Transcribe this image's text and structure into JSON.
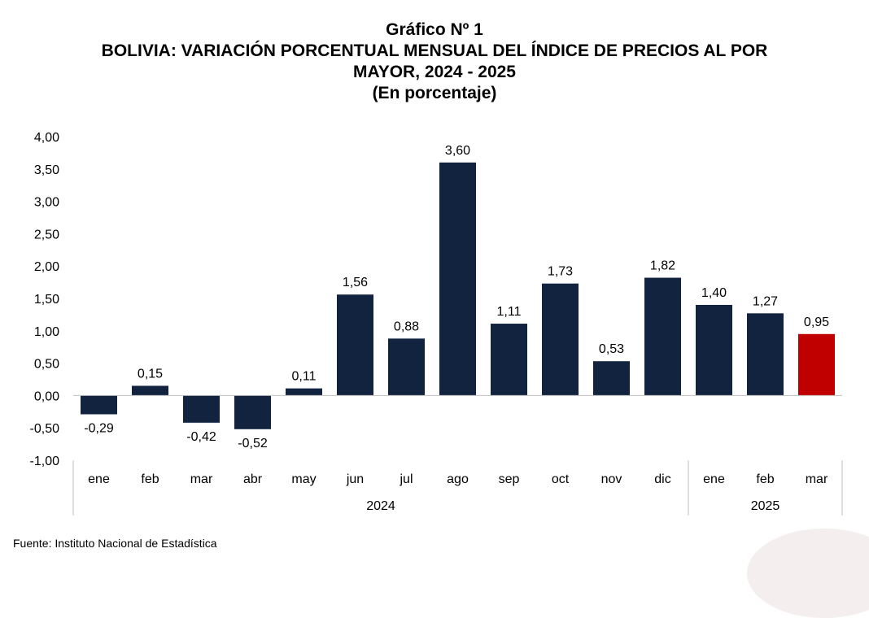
{
  "title": {
    "line1": "Gráfico Nº 1",
    "line2": "BOLIVIA: VARIACIÓN PORCENTUAL MENSUAL DEL ÍNDICE DE PRECIOS AL POR",
    "line3": "MAYOR, 2024 - 2025",
    "line4": "(En porcentaje)"
  },
  "source": "Fuente: Instituto Nacional de Estadística",
  "colors": {
    "bar": "#12233f",
    "highlight": "#c00000",
    "axis": "#bfbfbf",
    "text": "#000000"
  },
  "chart_data": {
    "type": "bar",
    "title": "BOLIVIA: VARIACIÓN PORCENTUAL MENSUAL DEL ÍNDICE DE PRECIOS AL POR MAYOR, 2024 - 2025",
    "categories": [
      "ene",
      "feb",
      "mar",
      "abr",
      "may",
      "jun",
      "jul",
      "ago",
      "sep",
      "oct",
      "nov",
      "dic",
      "ene",
      "feb",
      "mar"
    ],
    "groups": [
      {
        "label": "2024",
        "count": 12
      },
      {
        "label": "2025",
        "count": 3
      }
    ],
    "values": [
      -0.29,
      0.15,
      -0.42,
      -0.52,
      0.11,
      1.56,
      0.88,
      3.6,
      1.11,
      1.73,
      0.53,
      1.82,
      1.4,
      1.27,
      0.95
    ],
    "value_labels": [
      "-0,29",
      "0,15",
      "-0,42",
      "-0,52",
      "0,11",
      "1,56",
      "0,88",
      "3,60",
      "1,11",
      "1,73",
      "0,53",
      "1,82",
      "1,40",
      "1,27",
      "0,95"
    ],
    "highlight_index": 14,
    "ylim": [
      -1.0,
      4.0
    ],
    "yticks": [
      -1.0,
      -0.5,
      0.0,
      0.5,
      1.0,
      1.5,
      2.0,
      2.5,
      3.0,
      3.5,
      4.0
    ],
    "ytick_labels": [
      "-1,00",
      "-0,50",
      "0,00",
      "0,50",
      "1,00",
      "1,50",
      "2,00",
      "2,50",
      "3,00",
      "3,50",
      "4,00"
    ],
    "grid": false,
    "legend": "none",
    "xlabel": "",
    "ylabel": ""
  }
}
